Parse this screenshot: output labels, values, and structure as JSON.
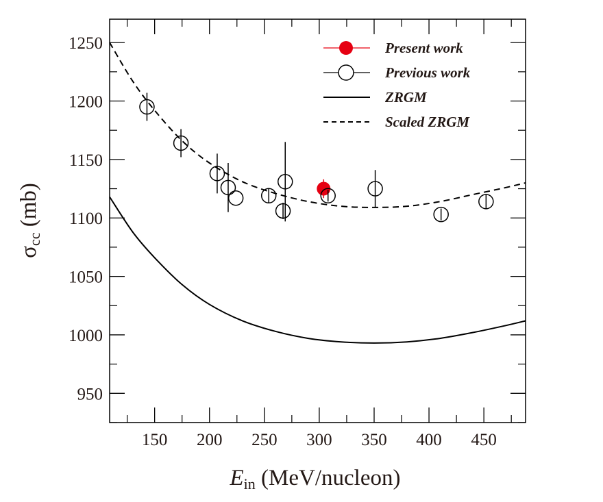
{
  "chart_data": {
    "type": "scatter",
    "title": "",
    "xlabel": {
      "main": "E",
      "sub": "in",
      "rest": " (MeV/nucleon)"
    },
    "ylabel": {
      "main": "σ",
      "sub": "cc",
      "rest": " (mb)"
    },
    "xlim": [
      109,
      488
    ],
    "ylim": [
      925,
      1270
    ],
    "xticks": [
      150,
      200,
      250,
      300,
      350,
      400,
      450
    ],
    "xminor": [
      125,
      175,
      225,
      275,
      325,
      375,
      425,
      475
    ],
    "yticks": [
      950,
      1000,
      1050,
      1100,
      1150,
      1200,
      1250
    ],
    "yminor": [
      925,
      975,
      1025,
      1075,
      1125,
      1175,
      1225
    ],
    "grid": false,
    "legend_position": "top-right",
    "series": [
      {
        "name": "Present work",
        "kind": "points",
        "marker": "filled-circle",
        "color": "#e60012",
        "points": [
          {
            "x": 304,
            "y": 1125,
            "err": 8
          }
        ]
      },
      {
        "name": "Previous work",
        "kind": "points",
        "marker": "open-circle",
        "color": "#000000",
        "points": [
          {
            "x": 143,
            "y": 1195,
            "err": 12
          },
          {
            "x": 174,
            "y": 1164,
            "err": 12
          },
          {
            "x": 207,
            "y": 1138,
            "err": 17
          },
          {
            "x": 217,
            "y": 1126,
            "err": 21
          },
          {
            "x": 224,
            "y": 1117,
            "err": 0
          },
          {
            "x": 254,
            "y": 1119,
            "err": 6
          },
          {
            "x": 267,
            "y": 1106,
            "err": 7
          },
          {
            "x": 269,
            "y": 1131,
            "err": 34
          },
          {
            "x": 308,
            "y": 1119,
            "err": 5
          },
          {
            "x": 351,
            "y": 1125,
            "err": 16
          },
          {
            "x": 411,
            "y": 1103,
            "err": 5
          },
          {
            "x": 452,
            "y": 1114,
            "err": 6
          }
        ]
      },
      {
        "name": "ZRGM",
        "kind": "line",
        "dash": "solid",
        "color": "#000000",
        "x": [
          109,
          130,
          150,
          175,
          200,
          230,
          260,
          290,
          320,
          350,
          380,
          410,
          440,
          470,
          488
        ],
        "y": [
          1118,
          1088,
          1066,
          1043,
          1026,
          1012,
          1003,
          997,
          994,
          993,
          994,
          997,
          1002,
          1008,
          1012
        ]
      },
      {
        "name": "Scaled ZRGM",
        "kind": "line",
        "dash": "dashed",
        "color": "#000000",
        "x": [
          109,
          130,
          150,
          175,
          200,
          230,
          260,
          290,
          320,
          350,
          380,
          410,
          440,
          470,
          488
        ],
        "y": [
          1250,
          1217,
          1192,
          1166,
          1147,
          1131,
          1121,
          1114,
          1110,
          1109,
          1110,
          1114,
          1120,
          1126,
          1130
        ]
      }
    ]
  }
}
